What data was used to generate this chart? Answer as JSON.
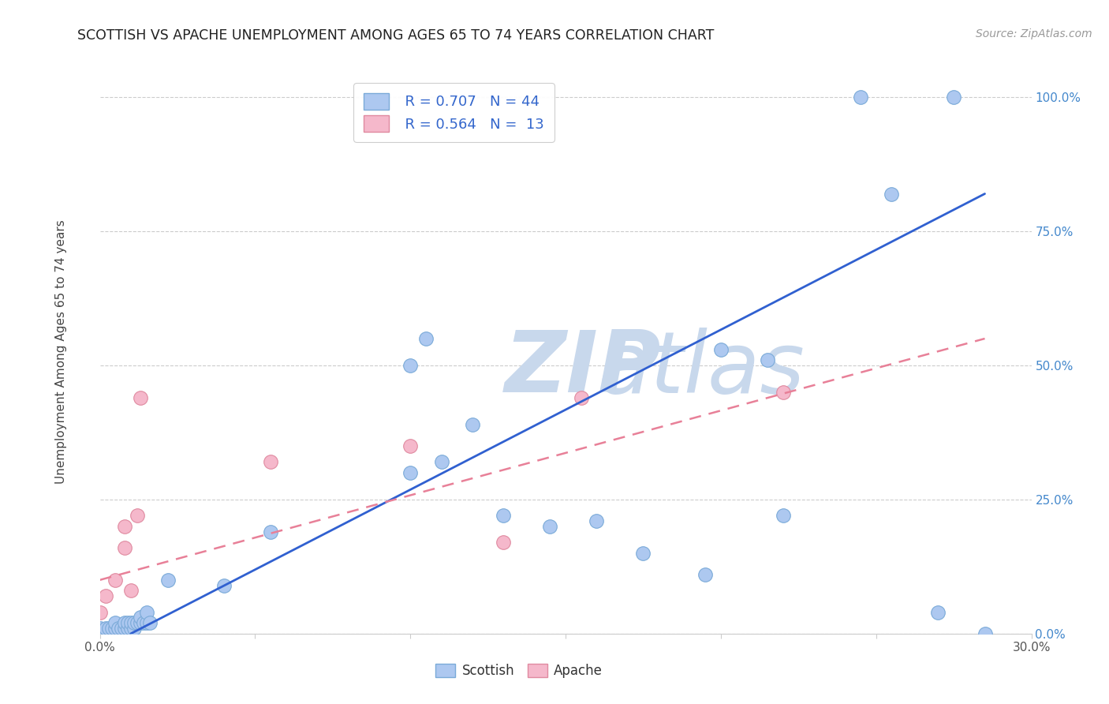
{
  "title": "SCOTTISH VS APACHE UNEMPLOYMENT AMONG AGES 65 TO 74 YEARS CORRELATION CHART",
  "source": "Source: ZipAtlas.com",
  "ylabel": "Unemployment Among Ages 65 to 74 years",
  "xlim": [
    0.0,
    0.3
  ],
  "ylim": [
    0.0,
    1.05
  ],
  "ytick_labels": [
    "0.0%",
    "25.0%",
    "50.0%",
    "75.0%",
    "100.0%"
  ],
  "ytick_vals": [
    0.0,
    0.25,
    0.5,
    0.75,
    1.0
  ],
  "xtick_positions": [
    0.0,
    0.05,
    0.1,
    0.15,
    0.2,
    0.25,
    0.3
  ],
  "legend_r_scottish": "R = 0.707",
  "legend_n_scottish": "N = 44",
  "legend_r_apache": "R = 0.564",
  "legend_n_apache": "N =  13",
  "scottish_color": "#adc8f0",
  "scottish_edge_color": "#7aaad8",
  "apache_color": "#f5b8cb",
  "apache_edge_color": "#e08aa0",
  "trend_scottish_color": "#3060d0",
  "trend_apache_color": "#e88098",
  "watermark_zip_color": "#c8d8ec",
  "watermark_atlas_color": "#c8d8ec",
  "scottish_x": [
    0.0,
    0.002,
    0.003,
    0.004,
    0.005,
    0.005,
    0.006,
    0.007,
    0.008,
    0.008,
    0.009,
    0.009,
    0.01,
    0.01,
    0.011,
    0.011,
    0.012,
    0.013,
    0.013,
    0.014,
    0.015,
    0.015,
    0.016,
    0.022,
    0.04,
    0.055,
    0.1,
    0.1,
    0.105,
    0.11,
    0.12,
    0.13,
    0.145,
    0.16,
    0.175,
    0.195,
    0.2,
    0.215,
    0.22,
    0.245,
    0.255,
    0.27,
    0.275,
    0.285
  ],
  "scottish_y": [
    0.01,
    0.01,
    0.01,
    0.01,
    0.01,
    0.02,
    0.01,
    0.01,
    0.01,
    0.02,
    0.01,
    0.02,
    0.01,
    0.02,
    0.01,
    0.02,
    0.02,
    0.02,
    0.03,
    0.02,
    0.02,
    0.04,
    0.02,
    0.1,
    0.09,
    0.19,
    0.3,
    0.5,
    0.55,
    0.32,
    0.39,
    0.22,
    0.2,
    0.21,
    0.15,
    0.11,
    0.53,
    0.51,
    0.22,
    1.0,
    0.82,
    0.04,
    1.0,
    0.0
  ],
  "apache_x": [
    0.0,
    0.002,
    0.005,
    0.008,
    0.008,
    0.01,
    0.012,
    0.013,
    0.055,
    0.1,
    0.13,
    0.155,
    0.22
  ],
  "apache_y": [
    0.04,
    0.07,
    0.1,
    0.16,
    0.2,
    0.08,
    0.22,
    0.44,
    0.32,
    0.35,
    0.17,
    0.44,
    0.45
  ],
  "scottish_trend_x": [
    0.01,
    0.285
  ],
  "scottish_trend_y": [
    0.0,
    0.82
  ],
  "apache_trend_x": [
    0.0,
    0.285
  ],
  "apache_trend_y": [
    0.1,
    0.55
  ]
}
